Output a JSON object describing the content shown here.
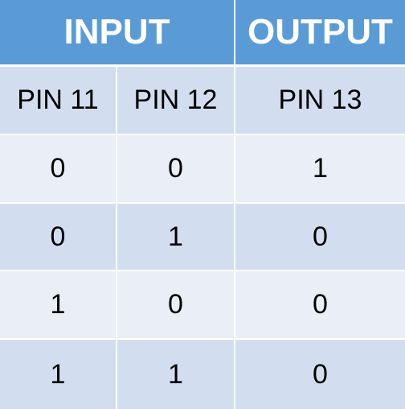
{
  "header": {
    "input_label": "INPUT",
    "output_label": "OUTPUT"
  },
  "columns": [
    "PIN 11",
    "PIN 12",
    "PIN 13"
  ],
  "rows": [
    [
      "0",
      "0",
      "1"
    ],
    [
      "0",
      "1",
      "0"
    ],
    [
      "1",
      "0",
      "0"
    ],
    [
      "1",
      "1",
      "0"
    ]
  ],
  "colors": {
    "header_bg": "#5b9bd5",
    "header_text": "#ffffff",
    "row_dark": "#d2deef",
    "row_light": "#eaeff7",
    "gridline": "#ffffff"
  }
}
